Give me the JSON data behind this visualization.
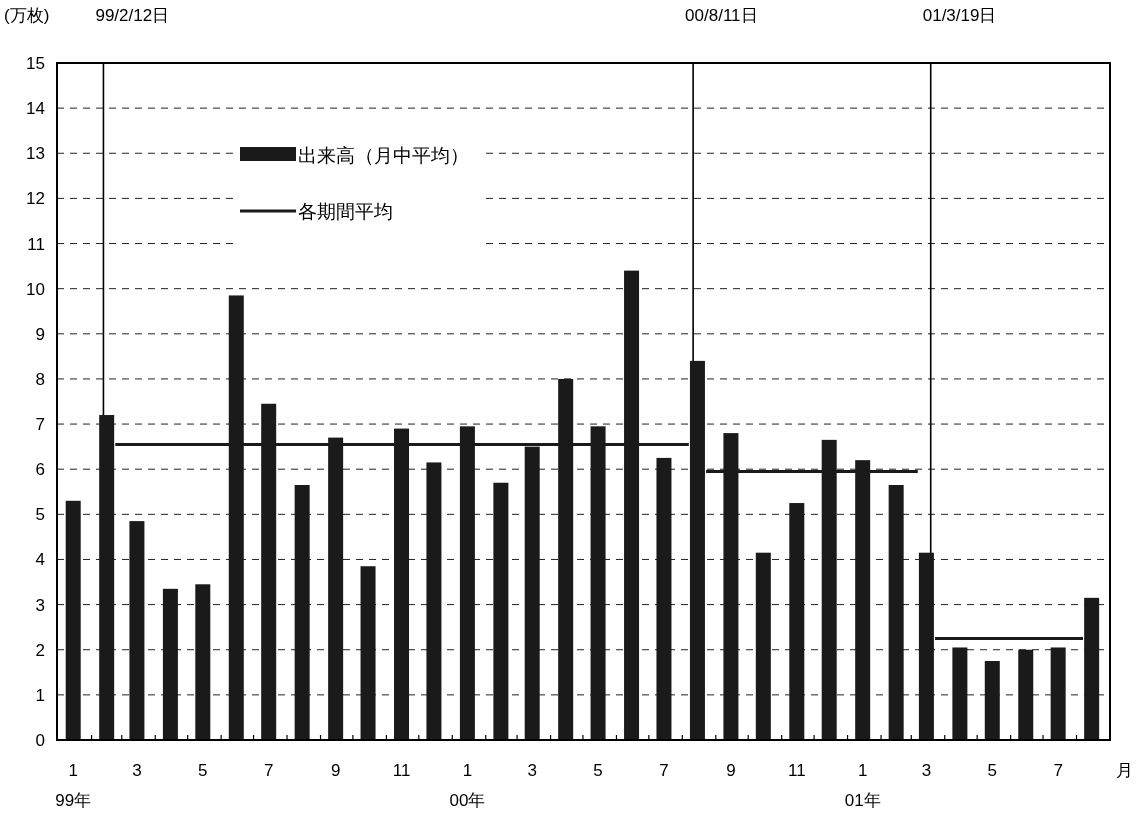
{
  "chart_data": {
    "type": "bar",
    "ylabel": "(万枚)",
    "xlabel": "月",
    "x": [
      "1999-01-15",
      "1999-02-15",
      "1999-03-15",
      "1999-04-15",
      "1999-05-15",
      "1999-06-15",
      "1999-07-15",
      "1999-08-15",
      "1999-09-15",
      "1999-10-15",
      "1999-11-15",
      "1999-12-15",
      "2000-01-15",
      "2000-02-15",
      "2000-03-15",
      "2000-04-15",
      "2000-05-15",
      "2000-06-15",
      "2000-07-15",
      "2000-08-15",
      "2000-09-15",
      "2000-10-15",
      "2000-11-15",
      "2000-12-15",
      "2001-01-15",
      "2001-02-15",
      "2001-03-15",
      "2001-04-15",
      "2001-05-15",
      "2001-06-15",
      "2001-07-15",
      "2001-08-15"
    ],
    "series": [
      {
        "name": "出来高（月中平均）",
        "color": "#1a1a1a",
        "values": [
          5.3,
          7.2,
          4.85,
          3.35,
          3.45,
          9.85,
          7.45,
          5.65,
          6.7,
          3.85,
          6.9,
          6.15,
          6.95,
          5.7,
          6.5,
          8.0,
          6.95,
          10.4,
          6.25,
          8.4,
          6.8,
          4.15,
          5.25,
          6.65,
          6.2,
          5.65,
          4.15,
          2.05,
          1.75,
          2.0,
          2.05,
          3.15
        ]
      },
      {
        "name": "各期間平均",
        "type": "line",
        "color": "#1a1a1a",
        "x": [
          "1999-02-23",
          "2000-08-07"
        ],
        "values": [
          6.55,
          6.55
        ]
      },
      {
        "type": "line",
        "color": "#1a1a1a",
        "x": [
          "2000-08-23",
          "2001-03-07"
        ],
        "values": [
          5.95,
          5.95
        ]
      },
      {
        "type": "line",
        "color": "#1a1a1a",
        "x": [
          "2001-03-23",
          "2001-08-07"
        ],
        "values": [
          2.25,
          2.25
        ]
      }
    ],
    "xlim": [
      "1998-12-31",
      "2001-09-01"
    ],
    "xticks": [
      {
        "value": "1999-01-15",
        "label": "1\n99年"
      },
      {
        "value": "1999-03-15",
        "label": "3"
      },
      {
        "value": "1999-05-15",
        "label": "5"
      },
      {
        "value": "1999-07-15",
        "label": "7"
      },
      {
        "value": "1999-09-15",
        "label": "9"
      },
      {
        "value": "1999-11-15",
        "label": "11"
      },
      {
        "value": "2000-01-15",
        "label": "1\n00年"
      },
      {
        "value": "2000-03-15",
        "label": "3"
      },
      {
        "value": "2000-05-15",
        "label": "5"
      },
      {
        "value": "2000-07-15",
        "label": "7"
      },
      {
        "value": "2000-09-15",
        "label": "9"
      },
      {
        "value": "2000-11-15",
        "label": "11"
      },
      {
        "value": "2001-01-15",
        "label": "1\n01年"
      },
      {
        "value": "2001-03-15",
        "label": "3"
      },
      {
        "value": "2001-05-15",
        "label": "5"
      },
      {
        "value": "2001-07-15",
        "label": "7"
      },
      {
        "value": "1999-02-01",
        "label": null
      },
      {
        "value": "1999-03-01",
        "label": null
      },
      {
        "value": "1999-04-01",
        "label": null
      },
      {
        "value": "1999-05-01",
        "label": null
      },
      {
        "value": "1999-06-01",
        "label": null
      },
      {
        "value": "1999-07-01",
        "label": null
      },
      {
        "value": "1999-08-01",
        "label": null
      },
      {
        "value": "1999-09-01",
        "label": null
      },
      {
        "value": "1999-10-01",
        "label": null
      },
      {
        "value": "1999-11-01",
        "label": null
      },
      {
        "value": "1999-12-01",
        "label": null
      },
      {
        "value": "2000-01-01",
        "label": null
      },
      {
        "value": "2000-02-01",
        "label": null
      },
      {
        "value": "2000-03-01",
        "label": null
      },
      {
        "value": "2000-04-01",
        "label": null
      },
      {
        "value": "2000-05-01",
        "label": null
      },
      {
        "value": "2000-06-01",
        "label": null
      },
      {
        "value": "2000-07-01",
        "label": null
      },
      {
        "value": "2000-08-01",
        "label": null
      },
      {
        "value": "2000-09-01",
        "label": null
      },
      {
        "value": "2000-10-01",
        "label": null
      },
      {
        "value": "2000-11-01",
        "label": null
      },
      {
        "value": "2000-12-01",
        "label": null
      },
      {
        "value": "2001-01-01",
        "label": null
      },
      {
        "value": "2001-02-01",
        "label": null
      },
      {
        "value": "2001-03-01",
        "label": null
      },
      {
        "value": "2001-04-01",
        "label": null
      },
      {
        "value": "2001-05-01",
        "label": null
      },
      {
        "value": "2001-06-01",
        "label": null
      },
      {
        "value": "2001-07-01",
        "label": null
      },
      {
        "value": "2001-08-01",
        "label": null
      }
    ],
    "ylim": [
      0,
      15
    ],
    "yticks": [
      0,
      1,
      2,
      3,
      4,
      5,
      6,
      7,
      8,
      9,
      10,
      11,
      12,
      13,
      14,
      15
    ],
    "ref_lines": [
      {
        "axis": "x",
        "value": "1999-02-12",
        "label": "99/2/12日"
      },
      {
        "axis": "x",
        "value": "2000-08-11",
        "label": "00/8/11日"
      },
      {
        "axis": "x",
        "value": "2001-03-19",
        "label": "01/3/19日"
      }
    ],
    "grid": "y",
    "legend": "top left"
  }
}
